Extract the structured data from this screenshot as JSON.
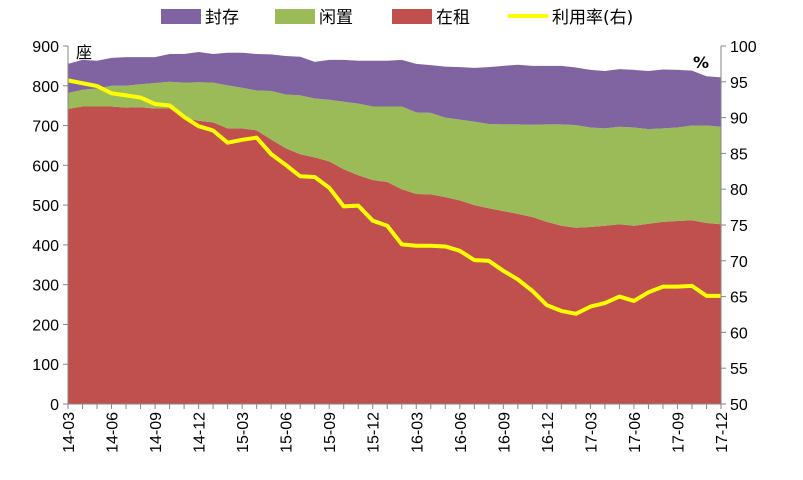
{
  "chart_data": {
    "type": "area",
    "categories": [
      "14-03",
      "14-04",
      "14-05",
      "14-06",
      "14-07",
      "14-08",
      "14-09",
      "14-10",
      "14-11",
      "14-12",
      "15-01",
      "15-02",
      "15-03",
      "15-04",
      "15-05",
      "15-06",
      "15-07",
      "15-08",
      "15-09",
      "15-10",
      "15-11",
      "15-12",
      "16-01",
      "16-02",
      "16-03",
      "16-04",
      "16-05",
      "16-06",
      "16-07",
      "16-08",
      "16-09",
      "16-10",
      "16-11",
      "16-12",
      "17-01",
      "17-02",
      "17-03",
      "17-04",
      "17-05",
      "17-06",
      "17-07",
      "17-08",
      "17-09",
      "17-10",
      "17-11",
      "17-12"
    ],
    "x_tick_labels": [
      "14-03",
      "14-06",
      "14-09",
      "14-12",
      "15-03",
      "15-06",
      "15-09",
      "15-12",
      "16-03",
      "16-06",
      "16-09",
      "16-12",
      "17-03",
      "17-06",
      "17-09",
      "17-12"
    ],
    "stack_order": [
      "在租",
      "闲置",
      "封存"
    ],
    "series": [
      {
        "name": "在租",
        "axis": "left",
        "color": "#C0504D",
        "values": [
          742,
          748,
          748,
          748,
          745,
          746,
          743,
          743,
          720,
          712,
          708,
          693,
          693,
          688,
          665,
          643,
          628,
          620,
          610,
          590,
          575,
          563,
          558,
          540,
          528,
          527,
          520,
          512,
          500,
          492,
          485,
          478,
          470,
          458,
          448,
          443,
          445,
          448,
          452,
          448,
          453,
          458,
          460,
          462,
          455,
          452
        ]
      },
      {
        "name": "闲置",
        "axis": "left",
        "color": "#9BBB59",
        "values": [
          40,
          42,
          45,
          52,
          55,
          58,
          64,
          67,
          88,
          97,
          100,
          108,
          102,
          100,
          122,
          135,
          148,
          148,
          155,
          170,
          180,
          185,
          190,
          208,
          205,
          205,
          200,
          203,
          210,
          212,
          218,
          225,
          232,
          245,
          255,
          258,
          250,
          245,
          245,
          247,
          238,
          235,
          235,
          238,
          245,
          245
        ]
      },
      {
        "name": "封存",
        "axis": "left",
        "color": "#8064A2",
        "values": [
          73,
          75,
          70,
          70,
          72,
          68,
          65,
          70,
          72,
          76,
          72,
          82,
          88,
          92,
          92,
          97,
          97,
          92,
          100,
          105,
          108,
          115,
          115,
          117,
          122,
          120,
          128,
          132,
          135,
          143,
          147,
          150,
          148,
          147,
          147,
          145,
          145,
          144,
          145,
          145,
          146,
          148,
          145,
          138,
          124,
          124
        ]
      },
      {
        "name": "利用率(右)",
        "axis": "right",
        "type": "line",
        "color": "#FFFF00",
        "values": [
          95.2,
          94.8,
          94.4,
          93.4,
          93.1,
          92.8,
          91.9,
          91.7,
          90.1,
          88.8,
          88.2,
          86.5,
          86.9,
          87.2,
          84.9,
          83.4,
          81.8,
          81.7,
          80.2,
          77.6,
          77.7,
          75.6,
          74.9,
          72.3,
          72.1,
          72.1,
          72.0,
          71.4,
          70.1,
          70.0,
          68.6,
          67.4,
          65.8,
          63.8,
          63.0,
          62.6,
          63.6,
          64.1,
          65.0,
          64.4,
          65.6,
          66.4,
          66.4,
          66.5,
          65.1,
          65.1
        ]
      }
    ],
    "legend": [
      "封存",
      "闲置",
      "在租",
      "利用率(右)"
    ],
    "legend_position": "top",
    "y_left": {
      "unit": "座",
      "ylim": [
        0,
        900
      ],
      "ticks": [
        0,
        100,
        200,
        300,
        400,
        500,
        600,
        700,
        800,
        900
      ]
    },
    "y_right": {
      "unit": "%",
      "ylim": [
        50,
        100
      ],
      "ticks": [
        50,
        55,
        60,
        65,
        70,
        75,
        80,
        85,
        90,
        95,
        100
      ]
    },
    "grid": false
  }
}
